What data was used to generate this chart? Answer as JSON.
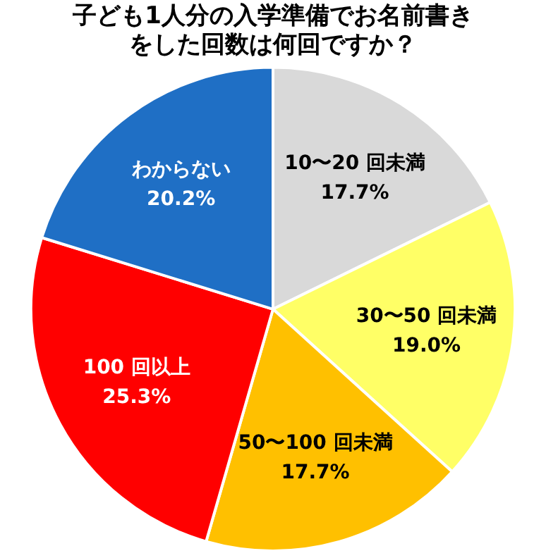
{
  "chart_data": {
    "type": "pie",
    "title": "子ども1人分の入学準備でお名前書きをした回数は何回ですか？",
    "categories": [
      "10〜20 回未満",
      "30〜50 回未満",
      "50〜100 回未満",
      "100 回以上",
      "わからない"
    ],
    "values": [
      17.7,
      19.0,
      17.7,
      25.3,
      20.2
    ],
    "colors": [
      "#d9d9d9",
      "#ffff66",
      "#ffc000",
      "#ff0000",
      "#1f6fc5"
    ],
    "value_labels": [
      "17.7%",
      "19.0%",
      "17.7%",
      "25.3%",
      "20.2%"
    ],
    "legend": false
  }
}
